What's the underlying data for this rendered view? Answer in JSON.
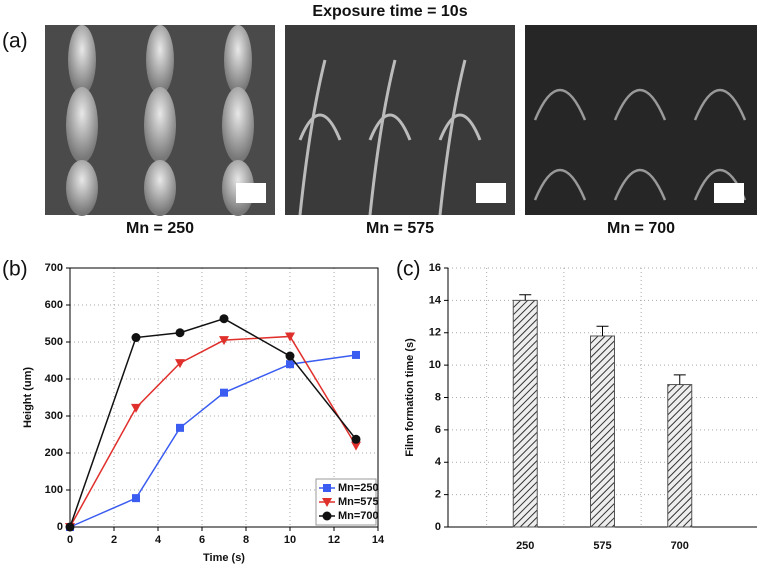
{
  "figure": {
    "title": "Exposure time = 10s",
    "panels": [
      "(a)",
      "(b)",
      "(c)"
    ],
    "captions": [
      "Mn = 250",
      "Mn = 575",
      "Mn = 700"
    ]
  },
  "chart_data": [
    {
      "type": "line",
      "x_label": "Time (s)",
      "y_label": "Height (um)",
      "x": [
        0,
        3,
        5,
        7,
        10,
        13
      ],
      "series": [
        {
          "name": "Mn=250",
          "color": "#3a5cf0",
          "marker": "square",
          "values": [
            0,
            78,
            268,
            363,
            440,
            465
          ]
        },
        {
          "name": "Mn=575",
          "color": "#e0302c",
          "marker": "triangle",
          "values": [
            0,
            322,
            443,
            505,
            515,
            220
          ]
        },
        {
          "name": "Mn=700",
          "color": "#111111",
          "marker": "circle",
          "values": [
            0,
            512,
            525,
            563,
            462,
            237
          ]
        }
      ],
      "xlim": [
        0,
        14
      ],
      "xticks": [
        0,
        2,
        4,
        6,
        8,
        10,
        12,
        14
      ],
      "ylim": [
        0,
        700
      ],
      "yticks": [
        0,
        100,
        200,
        300,
        400,
        500,
        600,
        700
      ],
      "grid": true,
      "legend": "lower-right"
    },
    {
      "type": "bar",
      "y_label": "Film formation time (s)",
      "categories": [
        "250",
        "575",
        "700"
      ],
      "values": [
        14.0,
        11.8,
        8.8
      ],
      "errors": [
        0.35,
        0.6,
        0.6
      ],
      "color": "#555555",
      "ylim": [
        0,
        16
      ],
      "yticks": [
        0,
        2,
        4,
        6,
        8,
        10,
        12,
        14,
        16
      ],
      "grid": true
    }
  ]
}
